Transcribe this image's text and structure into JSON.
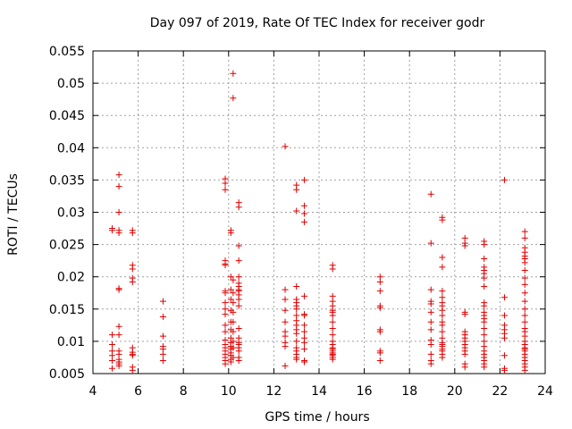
{
  "chart_data": {
    "type": "scatter",
    "title": "Day 097 of 2019, Rate Of TEC Index for receiver godr",
    "xlabel": "GPS time / hours",
    "ylabel": "ROTI / TECUs",
    "xlim": [
      4,
      24
    ],
    "ylim": [
      0.005,
      0.055
    ],
    "xticks": [
      4,
      6,
      8,
      10,
      12,
      14,
      16,
      18,
      20,
      22,
      24
    ],
    "yticks": [
      0.005,
      0.01,
      0.015,
      0.02,
      0.025,
      0.03,
      0.035,
      0.04,
      0.045,
      0.05,
      0.055
    ],
    "xtick_labels": [
      "4",
      "6",
      "8",
      "10",
      "12",
      "14",
      "16",
      "18",
      "20",
      "22",
      "24"
    ],
    "ytick_labels": [
      "0.005",
      "0.01",
      "0.015",
      "0.02",
      "0.025",
      "0.03",
      "0.035",
      "0.04",
      "0.045",
      "0.05",
      "0.055"
    ],
    "grid": true,
    "marker": "+",
    "color": "#e00000",
    "series": [
      {
        "name": "ROTI",
        "points": [
          [
            4.85,
            0.0275
          ],
          [
            4.85,
            0.0272
          ],
          [
            4.85,
            0.011
          ],
          [
            4.85,
            0.0095
          ],
          [
            4.85,
            0.0085
          ],
          [
            4.85,
            0.0078
          ],
          [
            4.85,
            0.007
          ],
          [
            4.85,
            0.0058
          ],
          [
            5.15,
            0.0358
          ],
          [
            5.15,
            0.034
          ],
          [
            5.15,
            0.03
          ],
          [
            5.15,
            0.0272
          ],
          [
            5.15,
            0.0268
          ],
          [
            5.15,
            0.0182
          ],
          [
            5.15,
            0.018
          ],
          [
            5.15,
            0.0123
          ],
          [
            5.15,
            0.011
          ],
          [
            5.15,
            0.0085
          ],
          [
            5.15,
            0.008
          ],
          [
            5.15,
            0.0072
          ],
          [
            5.15,
            0.0068
          ],
          [
            5.15,
            0.0065
          ],
          [
            5.15,
            0.0062
          ],
          [
            5.75,
            0.0272
          ],
          [
            5.75,
            0.0268
          ],
          [
            5.75,
            0.0218
          ],
          [
            5.75,
            0.0212
          ],
          [
            5.75,
            0.0198
          ],
          [
            5.75,
            0.0192
          ],
          [
            5.75,
            0.009
          ],
          [
            5.75,
            0.0083
          ],
          [
            5.75,
            0.008
          ],
          [
            5.75,
            0.0078
          ],
          [
            5.75,
            0.006
          ],
          [
            5.75,
            0.0055
          ],
          [
            7.1,
            0.0162
          ],
          [
            7.1,
            0.0138
          ],
          [
            7.1,
            0.0108
          ],
          [
            7.1,
            0.0092
          ],
          [
            7.1,
            0.0088
          ],
          [
            7.1,
            0.008
          ],
          [
            7.1,
            0.007
          ],
          [
            9.85,
            0.0352
          ],
          [
            9.85,
            0.0345
          ],
          [
            9.85,
            0.0335
          ],
          [
            9.85,
            0.0225
          ],
          [
            9.85,
            0.022
          ],
          [
            9.85,
            0.0218
          ],
          [
            9.85,
            0.0178
          ],
          [
            9.85,
            0.0175
          ],
          [
            9.85,
            0.016
          ],
          [
            9.85,
            0.015
          ],
          [
            9.85,
            0.0142
          ],
          [
            9.85,
            0.0125
          ],
          [
            9.85,
            0.0115
          ],
          [
            9.85,
            0.0102
          ],
          [
            9.85,
            0.0095
          ],
          [
            9.85,
            0.009
          ],
          [
            9.85,
            0.0085
          ],
          [
            9.85,
            0.008
          ],
          [
            9.85,
            0.0075
          ],
          [
            9.85,
            0.007
          ],
          [
            9.85,
            0.0065
          ],
          [
            10.1,
            0.0272
          ],
          [
            10.1,
            0.0268
          ],
          [
            10.1,
            0.02
          ],
          [
            10.1,
            0.018
          ],
          [
            10.1,
            0.0165
          ],
          [
            10.1,
            0.0148
          ],
          [
            10.1,
            0.013
          ],
          [
            10.1,
            0.0118
          ],
          [
            10.1,
            0.0105
          ],
          [
            10.1,
            0.0098
          ],
          [
            10.1,
            0.0092
          ],
          [
            10.1,
            0.0088
          ],
          [
            10.1,
            0.0082
          ],
          [
            10.1,
            0.0078
          ],
          [
            10.1,
            0.0072
          ],
          [
            10.1,
            0.0068
          ],
          [
            10.2,
            0.0515
          ],
          [
            10.2,
            0.0477
          ],
          [
            10.2,
            0.0195
          ],
          [
            10.2,
            0.0175
          ],
          [
            10.2,
            0.016
          ],
          [
            10.2,
            0.0145
          ],
          [
            10.2,
            0.013
          ],
          [
            10.2,
            0.0115
          ],
          [
            10.2,
            0.01
          ],
          [
            10.2,
            0.009
          ],
          [
            10.2,
            0.0075
          ],
          [
            10.45,
            0.0315
          ],
          [
            10.45,
            0.0308
          ],
          [
            10.45,
            0.0248
          ],
          [
            10.45,
            0.0225
          ],
          [
            10.45,
            0.02
          ],
          [
            10.45,
            0.019
          ],
          [
            10.45,
            0.0185
          ],
          [
            10.45,
            0.018
          ],
          [
            10.45,
            0.0178
          ],
          [
            10.45,
            0.0172
          ],
          [
            10.45,
            0.0165
          ],
          [
            10.45,
            0.0155
          ],
          [
            10.45,
            0.012
          ],
          [
            10.45,
            0.0105
          ],
          [
            10.45,
            0.0098
          ],
          [
            10.45,
            0.0095
          ],
          [
            10.45,
            0.009
          ],
          [
            10.45,
            0.0085
          ],
          [
            10.45,
            0.0075
          ],
          [
            10.45,
            0.007
          ],
          [
            12.5,
            0.0402
          ],
          [
            12.5,
            0.018
          ],
          [
            12.5,
            0.0165
          ],
          [
            12.5,
            0.0148
          ],
          [
            12.5,
            0.013
          ],
          [
            12.5,
            0.0115
          ],
          [
            12.5,
            0.0108
          ],
          [
            12.5,
            0.0098
          ],
          [
            12.5,
            0.0092
          ],
          [
            12.5,
            0.0062
          ],
          [
            13.0,
            0.0342
          ],
          [
            13.0,
            0.0335
          ],
          [
            13.0,
            0.0302
          ],
          [
            13.0,
            0.0185
          ],
          [
            13.0,
            0.0165
          ],
          [
            13.0,
            0.016
          ],
          [
            13.0,
            0.0155
          ],
          [
            13.0,
            0.015
          ],
          [
            13.0,
            0.014
          ],
          [
            13.0,
            0.0132
          ],
          [
            13.0,
            0.0125
          ],
          [
            13.0,
            0.0118
          ],
          [
            13.0,
            0.0112
          ],
          [
            13.0,
            0.01
          ],
          [
            13.0,
            0.009
          ],
          [
            13.0,
            0.0085
          ],
          [
            13.0,
            0.008
          ],
          [
            13.0,
            0.0075
          ],
          [
            13.0,
            0.0072
          ],
          [
            13.35,
            0.035
          ],
          [
            13.35,
            0.031
          ],
          [
            13.35,
            0.0298
          ],
          [
            13.35,
            0.0285
          ],
          [
            13.35,
            0.017
          ],
          [
            13.35,
            0.0142
          ],
          [
            13.35,
            0.014
          ],
          [
            13.35,
            0.0125
          ],
          [
            13.35,
            0.0115
          ],
          [
            13.35,
            0.0105
          ],
          [
            13.35,
            0.0098
          ],
          [
            13.35,
            0.0088
          ],
          [
            13.35,
            0.007
          ],
          [
            13.35,
            0.0068
          ],
          [
            14.6,
            0.0218
          ],
          [
            14.6,
            0.0212
          ],
          [
            14.6,
            0.017
          ],
          [
            14.6,
            0.0162
          ],
          [
            14.6,
            0.0155
          ],
          [
            14.6,
            0.0148
          ],
          [
            14.6,
            0.0145
          ],
          [
            14.6,
            0.014
          ],
          [
            14.6,
            0.013
          ],
          [
            14.6,
            0.012
          ],
          [
            14.6,
            0.011
          ],
          [
            14.6,
            0.01
          ],
          [
            14.6,
            0.0095
          ],
          [
            14.6,
            0.009
          ],
          [
            14.6,
            0.0088
          ],
          [
            14.6,
            0.0085
          ],
          [
            14.6,
            0.0082
          ],
          [
            14.6,
            0.008
          ],
          [
            14.6,
            0.0078
          ],
          [
            14.6,
            0.0075
          ],
          [
            14.6,
            0.0072
          ],
          [
            16.7,
            0.02
          ],
          [
            16.7,
            0.0192
          ],
          [
            16.7,
            0.0178
          ],
          [
            16.7,
            0.0155
          ],
          [
            16.7,
            0.0152
          ],
          [
            16.7,
            0.0118
          ],
          [
            16.7,
            0.0115
          ],
          [
            16.7,
            0.0085
          ],
          [
            16.7,
            0.0082
          ],
          [
            16.7,
            0.007
          ],
          [
            18.95,
            0.0328
          ],
          [
            18.95,
            0.0252
          ],
          [
            18.95,
            0.018
          ],
          [
            18.95,
            0.0162
          ],
          [
            18.95,
            0.0158
          ],
          [
            18.95,
            0.0145
          ],
          [
            18.95,
            0.013
          ],
          [
            18.95,
            0.0118
          ],
          [
            18.95,
            0.0102
          ],
          [
            18.95,
            0.0095
          ],
          [
            18.95,
            0.008
          ],
          [
            18.95,
            0.007
          ],
          [
            18.95,
            0.0065
          ],
          [
            19.45,
            0.0292
          ],
          [
            19.45,
            0.0288
          ],
          [
            19.45,
            0.023
          ],
          [
            19.45,
            0.0215
          ],
          [
            19.45,
            0.0178
          ],
          [
            19.45,
            0.0168
          ],
          [
            19.45,
            0.016
          ],
          [
            19.45,
            0.0155
          ],
          [
            19.45,
            0.0148
          ],
          [
            19.45,
            0.014
          ],
          [
            19.45,
            0.013
          ],
          [
            19.45,
            0.0125
          ],
          [
            19.45,
            0.0115
          ],
          [
            19.45,
            0.0105
          ],
          [
            19.45,
            0.0098
          ],
          [
            19.45,
            0.0095
          ],
          [
            19.45,
            0.0092
          ],
          [
            19.45,
            0.0088
          ],
          [
            19.45,
            0.0085
          ],
          [
            19.45,
            0.008
          ],
          [
            19.45,
            0.0075
          ],
          [
            20.45,
            0.026
          ],
          [
            20.45,
            0.0252
          ],
          [
            20.45,
            0.0248
          ],
          [
            20.45,
            0.0145
          ],
          [
            20.45,
            0.0142
          ],
          [
            20.45,
            0.0115
          ],
          [
            20.45,
            0.011
          ],
          [
            20.45,
            0.0105
          ],
          [
            20.45,
            0.01
          ],
          [
            20.45,
            0.0095
          ],
          [
            20.45,
            0.009
          ],
          [
            20.45,
            0.0085
          ],
          [
            20.45,
            0.008
          ],
          [
            20.45,
            0.0065
          ],
          [
            20.45,
            0.006
          ],
          [
            21.3,
            0.0255
          ],
          [
            21.3,
            0.025
          ],
          [
            21.3,
            0.0228
          ],
          [
            21.3,
            0.0215
          ],
          [
            21.3,
            0.021
          ],
          [
            21.3,
            0.0205
          ],
          [
            21.3,
            0.0198
          ],
          [
            21.3,
            0.0185
          ],
          [
            21.3,
            0.016
          ],
          [
            21.3,
            0.0155
          ],
          [
            21.3,
            0.0145
          ],
          [
            21.3,
            0.014
          ],
          [
            21.3,
            0.0135
          ],
          [
            21.3,
            0.013
          ],
          [
            21.3,
            0.012
          ],
          [
            21.3,
            0.011
          ],
          [
            21.3,
            0.01
          ],
          [
            21.3,
            0.0092
          ],
          [
            21.3,
            0.0085
          ],
          [
            21.3,
            0.008
          ],
          [
            21.3,
            0.0075
          ],
          [
            21.3,
            0.007
          ],
          [
            21.3,
            0.0065
          ],
          [
            21.3,
            0.006
          ],
          [
            22.2,
            0.035
          ],
          [
            22.2,
            0.0168
          ],
          [
            22.2,
            0.014
          ],
          [
            22.2,
            0.0125
          ],
          [
            22.2,
            0.0118
          ],
          [
            22.2,
            0.0112
          ],
          [
            22.2,
            0.0105
          ],
          [
            22.2,
            0.0078
          ],
          [
            22.2,
            0.0058
          ],
          [
            22.2,
            0.0055
          ],
          [
            23.1,
            0.027
          ],
          [
            23.1,
            0.026
          ],
          [
            23.1,
            0.0245
          ],
          [
            23.1,
            0.0238
          ],
          [
            23.1,
            0.0232
          ],
          [
            23.1,
            0.0228
          ],
          [
            23.1,
            0.0222
          ],
          [
            23.1,
            0.021
          ],
          [
            23.1,
            0.0198
          ],
          [
            23.1,
            0.0188
          ],
          [
            23.1,
            0.0175
          ],
          [
            23.1,
            0.0162
          ],
          [
            23.1,
            0.015
          ],
          [
            23.1,
            0.014
          ],
          [
            23.1,
            0.013
          ],
          [
            23.1,
            0.012
          ],
          [
            23.1,
            0.0115
          ],
          [
            23.1,
            0.0108
          ],
          [
            23.1,
            0.01
          ],
          [
            23.1,
            0.0095
          ],
          [
            23.1,
            0.009
          ],
          [
            23.1,
            0.0088
          ],
          [
            23.1,
            0.0085
          ],
          [
            23.1,
            0.008
          ],
          [
            23.1,
            0.0075
          ],
          [
            23.1,
            0.007
          ],
          [
            23.1,
            0.0065
          ],
          [
            23.1,
            0.006
          ],
          [
            23.1,
            0.0055
          ]
        ]
      }
    ]
  }
}
